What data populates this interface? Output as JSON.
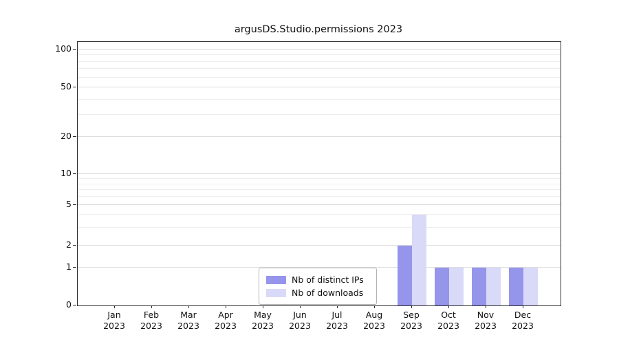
{
  "title": "argusDS.Studio.permissions 2023",
  "chart_data": {
    "type": "bar",
    "title": "argusDS.Studio.permissions 2023",
    "categories": [
      "Jan 2023",
      "Feb 2023",
      "Mar 2023",
      "Apr 2023",
      "May 2023",
      "Jun 2023",
      "Jul 2023",
      "Aug 2023",
      "Sep 2023",
      "Oct 2023",
      "Nov 2023",
      "Dec 2023"
    ],
    "series": [
      {
        "name": "Nb of distinct IPs",
        "color": "#9595ec",
        "values": [
          0,
          0,
          0,
          0,
          0,
          0,
          0,
          0,
          2,
          1,
          1,
          1
        ]
      },
      {
        "name": "Nb of downloads",
        "color": "#d9d9f8",
        "values": [
          0,
          0,
          0,
          0,
          0,
          0,
          0,
          0,
          4,
          1,
          1,
          1
        ]
      }
    ],
    "yscale": "symlog",
    "ylim": [
      0,
      100
    ],
    "y_ticks": [
      0,
      1,
      2,
      5,
      10,
      20,
      50,
      100
    ],
    "y_minor_ticks": [
      3,
      4,
      6,
      7,
      8,
      9,
      30,
      40,
      60,
      70,
      80,
      90
    ],
    "grid": "horizontal-only",
    "legend_position": "lower center",
    "xlabel": "",
    "ylabel": ""
  }
}
